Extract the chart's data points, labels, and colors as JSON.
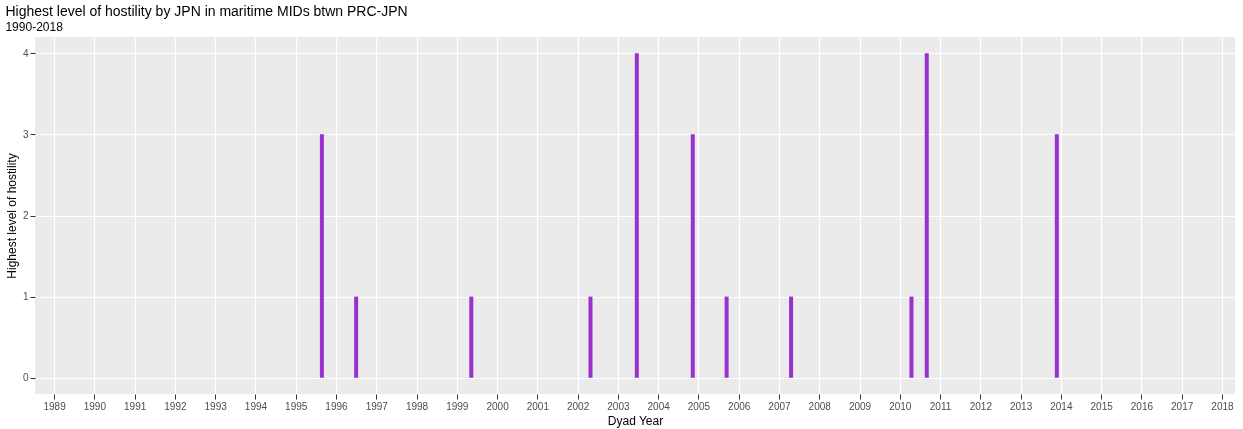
{
  "chart_data": {
    "type": "bar",
    "title": "Highest level of hostility by JPN in maritime MIDs btwn PRC-JPN",
    "subtitle": "1990-2018",
    "xlabel": "Dyad Year",
    "ylabel": "Highest level of hostility",
    "x": [
      1995.65,
      1996.5,
      1999.36,
      2002.32,
      2003.47,
      2004.86,
      2005.7,
      2007.3,
      2010.29,
      2010.67,
      2013.9
    ],
    "values": [
      3,
      1,
      1,
      1,
      4,
      3,
      1,
      1,
      1,
      4,
      3
    ],
    "color": "#9932cc",
    "xlim": [
      1988.65,
      2018.2
    ],
    "xticks": [
      1989,
      1990,
      1991,
      1992,
      1993,
      1994,
      1995,
      1996,
      1997,
      1998,
      1999,
      2000,
      2001,
      2002,
      2003,
      2004,
      2005,
      2006,
      2007,
      2008,
      2009,
      2010,
      2011,
      2012,
      2013,
      2014,
      2015,
      2016,
      2017,
      2018
    ],
    "ylim": [
      -0.2,
      4.2
    ],
    "yticks": [
      0,
      1,
      2,
      3,
      4
    ],
    "grid": true
  }
}
